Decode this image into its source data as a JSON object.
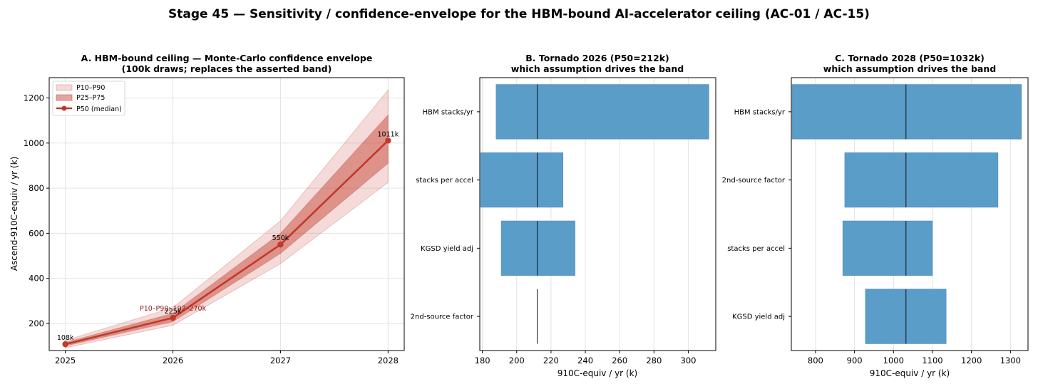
{
  "figure": {
    "title": "Stage 45 — Sensitivity / confidence-envelope for the HBM-bound AI-accelerator ceiling (AC-01 / AC-15)"
  },
  "colors": {
    "band_outer": "#c0392b",
    "band_inner": "#c0392b",
    "median": "#c0392b",
    "bar": "#5b9dc9",
    "annotation": "#8b1a1a"
  },
  "chart_data": [
    {
      "type": "area",
      "title_lines": [
        "A. HBM-bound ceiling — Monte-Carlo confidence envelope",
        "(100k draws; replaces the asserted band)"
      ],
      "xlabel": "",
      "ylabel": "Ascend-910C-equiv / yr (k)",
      "x": [
        2025,
        2026,
        2027,
        2028
      ],
      "xticks": [
        "2025",
        "2026",
        "2027",
        "2028"
      ],
      "xlim": [
        2024.85,
        2028.15
      ],
      "ylim": [
        80,
        1290
      ],
      "yticks": [
        200,
        400,
        600,
        800,
        1000,
        1200
      ],
      "yticklabels": [
        "200",
        "400",
        "600",
        "800",
        "1000",
        "1200"
      ],
      "series": [
        {
          "name": "P10–P90",
          "kind": "band",
          "low": [
            92,
            192,
            465,
            825
          ],
          "high": [
            125,
            270,
            655,
            1235
          ]
        },
        {
          "name": "P25–P75",
          "kind": "band",
          "low": [
            100,
            208,
            510,
            910
          ],
          "high": [
            116,
            245,
            600,
            1125
          ]
        },
        {
          "name": "P50 (median)",
          "kind": "line",
          "values": [
            108,
            225,
            550,
            1011
          ]
        }
      ],
      "data_labels": [
        "108k",
        "225k",
        "550k",
        "1011k"
      ],
      "annotation": {
        "text": "P10–P90: 192–270k",
        "x": 2026,
        "y": 270
      },
      "legend": "top-left",
      "grid": true
    },
    {
      "type": "bar",
      "orientation": "horizontal",
      "title_lines": [
        "B. Tornado 2026 (P50=212k)",
        "which assumption drives the band"
      ],
      "xlabel": "910C-equiv / yr (k)",
      "ylabel": "",
      "categories": [
        "HBM stacks/yr",
        "stacks per accel",
        "KGSD yield adj",
        "2nd-source factor"
      ],
      "low": [
        188,
        179,
        191,
        212
      ],
      "high": [
        312,
        227,
        234,
        212
      ],
      "p50": 212,
      "xlim": [
        178.5,
        316
      ],
      "xticks": [
        180,
        200,
        220,
        240,
        260,
        280,
        300
      ],
      "xticklabels": [
        "180",
        "200",
        "220",
        "240",
        "260",
        "280",
        "300"
      ],
      "grid": true
    },
    {
      "type": "bar",
      "orientation": "horizontal",
      "title_lines": [
        "C. Tornado 2028 (P50=1032k)",
        "which assumption drives the band"
      ],
      "xlabel": "910C-equiv / yr (k)",
      "ylabel": "",
      "categories": [
        "HBM stacks/yr",
        "2nd-source factor",
        "stacks per accel",
        "KGSD yield adj"
      ],
      "low": [
        740,
        875,
        870,
        928
      ],
      "high": [
        1328,
        1268,
        1100,
        1135
      ],
      "p50": 1032,
      "xlim": [
        738,
        1345
      ],
      "xticks": [
        800,
        900,
        1000,
        1100,
        1200,
        1300
      ],
      "xticklabels": [
        "800",
        "900",
        "1000",
        "1100",
        "1200",
        "1300"
      ],
      "grid": true
    }
  ]
}
